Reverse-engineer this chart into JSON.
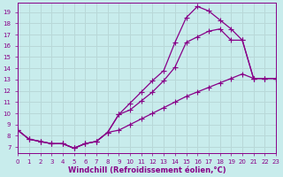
{
  "xlabel": "Windchill (Refroidissement éolien,°C)",
  "bg_color": "#c8ecec",
  "grid_color": "#b8d8d8",
  "line_color": "#880088",
  "marker": "+",
  "marker_size": 4,
  "line_width": 0.9,
  "series1_x": [
    0,
    1,
    2,
    3,
    4,
    5,
    6,
    7,
    8,
    9,
    10,
    11,
    12,
    13,
    14,
    15,
    16,
    17,
    18,
    19,
    20,
    21,
    22,
    23
  ],
  "series1_y": [
    8.5,
    7.7,
    7.5,
    7.3,
    7.3,
    6.9,
    7.3,
    7.5,
    8.3,
    9.9,
    10.9,
    11.9,
    12.9,
    13.8,
    16.3,
    18.5,
    19.5,
    19.1,
    18.3,
    17.5,
    16.5,
    13.1,
    13.1,
    13.1
  ],
  "series2_x": [
    0,
    1,
    2,
    3,
    4,
    5,
    6,
    7,
    8,
    9,
    10,
    11,
    12,
    13,
    14,
    15,
    16,
    17,
    18,
    19,
    20,
    21,
    22,
    23
  ],
  "series2_y": [
    8.5,
    7.7,
    7.5,
    7.3,
    7.3,
    6.9,
    7.3,
    7.5,
    8.3,
    9.9,
    10.3,
    11.1,
    11.9,
    12.9,
    14.1,
    16.3,
    16.8,
    17.3,
    17.5,
    16.5,
    16.5,
    13.1,
    13.1,
    13.1
  ],
  "series3_x": [
    0,
    1,
    2,
    3,
    4,
    5,
    6,
    7,
    8,
    9,
    10,
    11,
    12,
    13,
    14,
    15,
    16,
    17,
    18,
    19,
    20,
    21,
    22,
    23
  ],
  "series3_y": [
    8.5,
    7.7,
    7.5,
    7.3,
    7.3,
    6.9,
    7.3,
    7.5,
    8.3,
    8.5,
    9.0,
    9.5,
    10.0,
    10.5,
    11.0,
    11.5,
    11.9,
    12.3,
    12.7,
    13.1,
    13.5,
    13.1,
    13.1,
    13.1
  ],
  "xlim": [
    0,
    23
  ],
  "ylim": [
    6.5,
    19.8
  ],
  "xtick_vals": [
    0,
    1,
    2,
    3,
    4,
    5,
    6,
    7,
    8,
    9,
    10,
    11,
    12,
    13,
    14,
    15,
    16,
    17,
    18,
    19,
    20,
    21,
    22,
    23
  ],
  "xtick_labels": [
    "0",
    "1",
    "2",
    "3",
    "4",
    "5",
    "6",
    "7",
    "8",
    "9",
    "10",
    "11",
    "12",
    "13",
    "14",
    "15",
    "16",
    "17",
    "18",
    "19",
    "20",
    "21",
    "22",
    "23"
  ],
  "ytick_vals": [
    7,
    8,
    9,
    10,
    11,
    12,
    13,
    14,
    15,
    16,
    17,
    18,
    19
  ],
  "tick_fontsize": 5.0,
  "xlabel_fontsize": 6.0
}
